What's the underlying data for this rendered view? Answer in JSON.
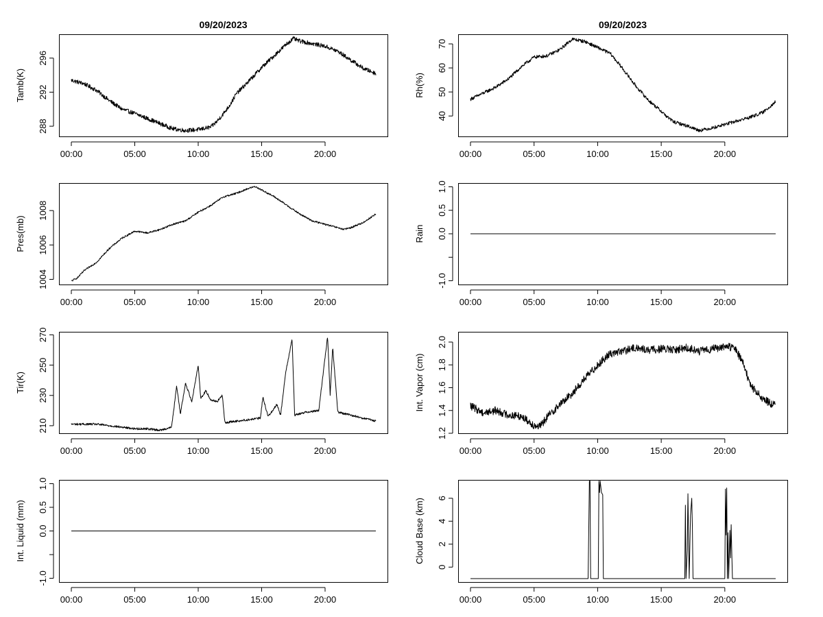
{
  "colors": {
    "background": "#ffffff",
    "foreground": "#000000"
  },
  "chart_data": [
    {
      "id": "tamb",
      "type": "line",
      "title": "09/20/2023",
      "xlabel": "",
      "ylabel": "Tamb(K)",
      "xlim": [
        0,
        24
      ],
      "ylim": [
        286.8,
        298.8
      ],
      "x_ticks": [
        0,
        5,
        10,
        15,
        20
      ],
      "x_tick_labels": [
        "00:00",
        "05:00",
        "10:00",
        "15:00",
        "20:00"
      ],
      "y_ticks": [
        288,
        292,
        296
      ],
      "y_tick_labels": [
        "288",
        "292",
        "296"
      ],
      "series": [
        {
          "name": "Tamb(K)",
          "x": [
            0,
            1,
            2,
            3,
            4,
            5,
            6,
            7,
            8,
            9,
            10,
            11,
            11.5,
            12,
            12.5,
            13,
            14,
            15,
            16,
            17,
            17.5,
            18,
            19,
            20,
            21,
            22,
            23,
            24
          ],
          "y": [
            293.4,
            293.0,
            292.2,
            291.0,
            290.0,
            289.5,
            288.9,
            288.3,
            287.7,
            287.5,
            287.6,
            287.9,
            288.6,
            289.5,
            290.5,
            291.8,
            293.3,
            294.9,
            296.3,
            297.7,
            298.3,
            298.0,
            297.7,
            297.4,
            296.8,
            295.8,
            294.8,
            294.2
          ],
          "noise": 0.25
        }
      ]
    },
    {
      "id": "rh",
      "type": "line",
      "title": "09/20/2023",
      "xlabel": "",
      "ylabel": "Rh(%)",
      "xlim": [
        0,
        24
      ],
      "ylim": [
        31.5,
        74
      ],
      "x_ticks": [
        0,
        5,
        10,
        15,
        20
      ],
      "x_tick_labels": [
        "00:00",
        "05:00",
        "10:00",
        "15:00",
        "20:00"
      ],
      "y_ticks": [
        40,
        50,
        60,
        70
      ],
      "y_tick_labels": [
        "40",
        "50",
        "60",
        "70"
      ],
      "series": [
        {
          "name": "Rh(%)",
          "x": [
            0,
            1,
            2,
            3,
            4,
            5,
            6,
            7,
            8,
            9,
            10,
            11,
            12,
            13,
            14,
            15,
            15.5,
            16,
            17,
            18,
            19,
            20,
            21,
            22,
            23,
            24
          ],
          "y": [
            47.0,
            49.5,
            52.0,
            55.5,
            60.5,
            64.5,
            65.0,
            67.5,
            72.0,
            71.0,
            68.5,
            66.0,
            59.5,
            52.5,
            46.5,
            42.0,
            39.5,
            37.5,
            36.0,
            34.0,
            35.0,
            36.5,
            38.0,
            39.5,
            41.5,
            46.0
          ],
          "noise": 0.7
        }
      ]
    },
    {
      "id": "pres",
      "type": "line",
      "title": "",
      "xlabel": "",
      "ylabel": "Pres(mb)",
      "xlim": [
        0,
        24
      ],
      "ylim": [
        1003.7,
        1009.6
      ],
      "x_ticks": [
        0,
        5,
        10,
        15,
        20
      ],
      "x_tick_labels": [
        "00:00",
        "05:00",
        "10:00",
        "15:00",
        "20:00"
      ],
      "y_ticks": [
        1004,
        1006,
        1008
      ],
      "y_tick_labels": [
        "1004",
        "1006",
        "1008"
      ],
      "series": [
        {
          "name": "Pres(mb)",
          "x": [
            0,
            0.5,
            1,
            2,
            3,
            4,
            5,
            6,
            7,
            8,
            9,
            10,
            11,
            12,
            13,
            14,
            14.5,
            15,
            16,
            17,
            18,
            19,
            20,
            21,
            21.5,
            22,
            23,
            24
          ],
          "y": [
            1003.9,
            1004.1,
            1004.5,
            1005.0,
            1005.8,
            1006.4,
            1006.8,
            1006.7,
            1006.9,
            1007.2,
            1007.4,
            1007.9,
            1008.3,
            1008.8,
            1009.0,
            1009.3,
            1009.4,
            1009.2,
            1008.8,
            1008.3,
            1007.8,
            1007.4,
            1007.2,
            1007.0,
            1006.9,
            1007.0,
            1007.3,
            1007.8
          ],
          "noise": 0.05
        }
      ]
    },
    {
      "id": "rain",
      "type": "line",
      "title": "",
      "xlabel": "",
      "ylabel": "Rain",
      "xlim": [
        0,
        24
      ],
      "ylim": [
        -1.08,
        1.08
      ],
      "x_ticks": [
        0,
        5,
        10,
        15,
        20
      ],
      "x_tick_labels": [
        "00:00",
        "05:00",
        "10:00",
        "15:00",
        "20:00"
      ],
      "y_ticks": [
        -1.0,
        -0.5,
        0.0,
        0.5,
        1.0
      ],
      "y_tick_labels": [
        "-1.0",
        "",
        "0.0",
        "0.5",
        "1.0"
      ],
      "series": [
        {
          "name": "Rain",
          "x": [
            0,
            24
          ],
          "y": [
            0,
            0
          ],
          "noise": 0
        }
      ]
    },
    {
      "id": "tir",
      "type": "line",
      "title": "",
      "xlabel": "",
      "ylabel": "Tir(K)",
      "xlim": [
        0,
        24
      ],
      "ylim": [
        205,
        272
      ],
      "x_ticks": [
        0,
        5,
        10,
        15,
        20
      ],
      "x_tick_labels": [
        "00:00",
        "05:00",
        "10:00",
        "15:00",
        "20:00"
      ],
      "y_ticks": [
        210,
        230,
        250,
        270
      ],
      "y_tick_labels": [
        "210",
        "230",
        "250",
        "270"
      ],
      "series": [
        {
          "name": "Tir(K)",
          "x": [
            0,
            1,
            2,
            3,
            4,
            5,
            6,
            7,
            7.9,
            8.3,
            8.6,
            9.0,
            9.5,
            10.0,
            10.2,
            10.6,
            11.0,
            11.5,
            11.9,
            12.1,
            13,
            14,
            14.9,
            15.1,
            15.5,
            16.2,
            16.5,
            16.9,
            17.2,
            17.4,
            17.6,
            18.5,
            19.5,
            20.2,
            20.4,
            20.6,
            21.0,
            22,
            23,
            24
          ],
          "y": [
            211,
            211,
            211,
            210,
            209,
            208,
            208,
            207,
            209,
            236,
            218,
            238,
            226,
            250,
            228,
            233,
            227,
            226,
            230,
            212,
            213,
            214,
            215,
            229,
            216,
            224,
            217,
            246,
            258,
            268,
            217,
            219,
            220,
            269,
            230,
            262,
            219,
            217,
            215,
            213
          ],
          "noise": 0.7
        }
      ]
    },
    {
      "id": "vapor",
      "type": "line",
      "title": "",
      "xlabel": "",
      "ylabel": "Int. Vapor (cm)",
      "xlim": [
        0,
        24
      ],
      "ylim": [
        1.2,
        2.09
      ],
      "x_ticks": [
        0,
        5,
        10,
        15,
        20
      ],
      "x_tick_labels": [
        "00:00",
        "05:00",
        "10:00",
        "15:00",
        "20:00"
      ],
      "y_ticks": [
        1.2,
        1.4,
        1.6,
        1.8,
        2.0
      ],
      "y_tick_labels": [
        "1.2",
        "1.4",
        "1.6",
        "1.8",
        "2.0"
      ],
      "series": [
        {
          "name": "Int. Vapor (cm)",
          "x": [
            0,
            1,
            2,
            3,
            4,
            5,
            5.5,
            6,
            7,
            8,
            9,
            10,
            11,
            12,
            13,
            14,
            15,
            16,
            17,
            18,
            19,
            20,
            20.8,
            21.5,
            22,
            23,
            24
          ],
          "y": [
            1.44,
            1.38,
            1.4,
            1.36,
            1.35,
            1.27,
            1.26,
            1.34,
            1.45,
            1.55,
            1.68,
            1.8,
            1.9,
            1.92,
            1.95,
            1.93,
            1.94,
            1.93,
            1.95,
            1.92,
            1.94,
            1.96,
            1.95,
            1.8,
            1.62,
            1.5,
            1.44
          ],
          "noise": 0.035
        }
      ]
    },
    {
      "id": "liquid",
      "type": "line",
      "title": "",
      "xlabel": "",
      "ylabel": "Int. Liquid (mm)",
      "xlim": [
        0,
        24
      ],
      "ylim": [
        -1.08,
        1.08
      ],
      "x_ticks": [
        0,
        5,
        10,
        15,
        20
      ],
      "x_tick_labels": [
        "00:00",
        "05:00",
        "10:00",
        "15:00",
        "20:00"
      ],
      "y_ticks": [
        -1.0,
        -0.5,
        0.0,
        0.5,
        1.0
      ],
      "y_tick_labels": [
        "-1.0",
        "",
        "0.0",
        "0.5",
        "1.0"
      ],
      "series": [
        {
          "name": "Int. Liquid (mm)",
          "x": [
            0,
            24
          ],
          "y": [
            0,
            0
          ],
          "noise": 0
        }
      ]
    },
    {
      "id": "cloud",
      "type": "line",
      "title": "",
      "xlabel": "",
      "ylabel": "Cloud Base (km)",
      "xlim": [
        0,
        24
      ],
      "ylim": [
        -1.3,
        7.6
      ],
      "x_ticks": [
        0,
        5,
        10,
        15,
        20
      ],
      "x_tick_labels": [
        "00:00",
        "05:00",
        "10:00",
        "15:00",
        "20:00"
      ],
      "y_ticks": [
        0,
        2,
        4,
        6
      ],
      "y_tick_labels": [
        "0",
        "2",
        "4",
        "6"
      ],
      "series": [
        {
          "name": "Cloud Base (km)",
          "x": [
            0,
            9.25,
            9.3,
            9.35,
            9.4,
            9.45,
            10.05,
            10.1,
            10.15,
            10.2,
            10.3,
            10.4,
            10.45,
            16.85,
            16.9,
            16.95,
            17.05,
            17.1,
            17.2,
            17.3,
            17.4,
            17.45,
            17.5,
            20.0,
            20.05,
            20.1,
            20.15,
            20.2,
            20.25,
            20.3,
            20.35,
            20.4,
            20.45,
            20.5,
            20.55,
            20.6,
            24
          ],
          "y": [
            -1,
            -1,
            3.2,
            7.5,
            7.5,
            -1,
            -1,
            7.5,
            6.5,
            7.5,
            6.5,
            6.3,
            -1,
            -1,
            5.4,
            -1,
            1.5,
            6.4,
            -1,
            4.5,
            6.0,
            3.5,
            -1,
            -1,
            6.8,
            2.8,
            6.9,
            -1,
            3.0,
            -1,
            1.0,
            3.2,
            0.8,
            3.7,
            1.2,
            -1,
            -1
          ],
          "noise": 0
        }
      ]
    }
  ]
}
